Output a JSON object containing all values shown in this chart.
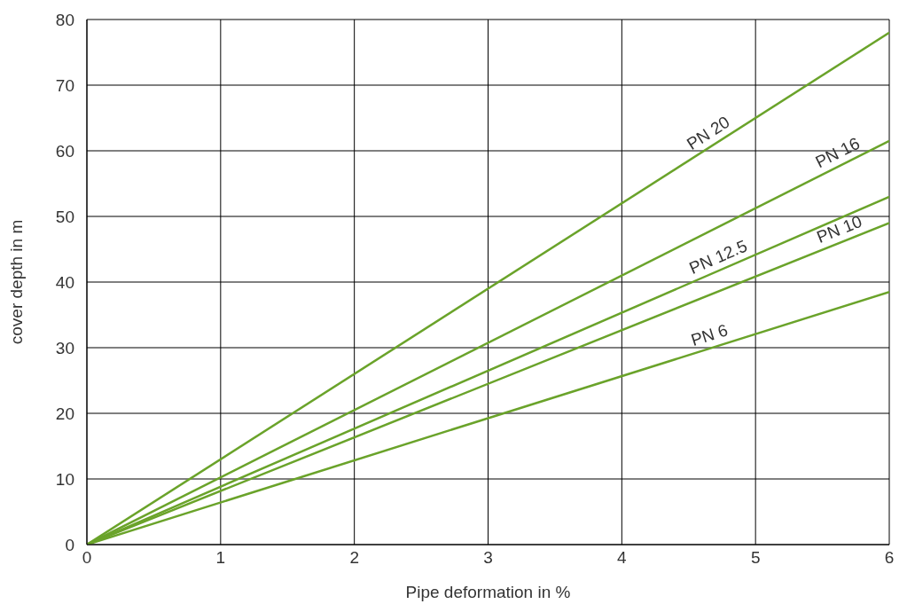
{
  "chart_data": {
    "type": "line",
    "xlabel": "Pipe deformation in  %",
    "ylabel": "cover depth in m",
    "x": [
      0,
      6
    ],
    "series": [
      {
        "name": "PN 20",
        "color": "#6aa32a",
        "values": [
          0,
          78
        ]
      },
      {
        "name": "PN 16",
        "color": "#6aa32a",
        "values": [
          0,
          61.5
        ]
      },
      {
        "name": "PN 12.5",
        "color": "#6aa32a",
        "values": [
          0,
          53
        ]
      },
      {
        "name": "PN 10",
        "color": "#6aa32a",
        "values": [
          0,
          49
        ]
      },
      {
        "name": "PN 6",
        "color": "#6aa32a",
        "values": [
          0,
          38.5
        ]
      }
    ],
    "xlim": [
      0,
      6
    ],
    "xticks": [
      0,
      1,
      2,
      3,
      4,
      5,
      6
    ],
    "ylim": [
      0,
      80
    ],
    "yticks": [
      0,
      10,
      20,
      30,
      40,
      50,
      60,
      70,
      80
    ],
    "grid": true,
    "line_style": "solid"
  }
}
